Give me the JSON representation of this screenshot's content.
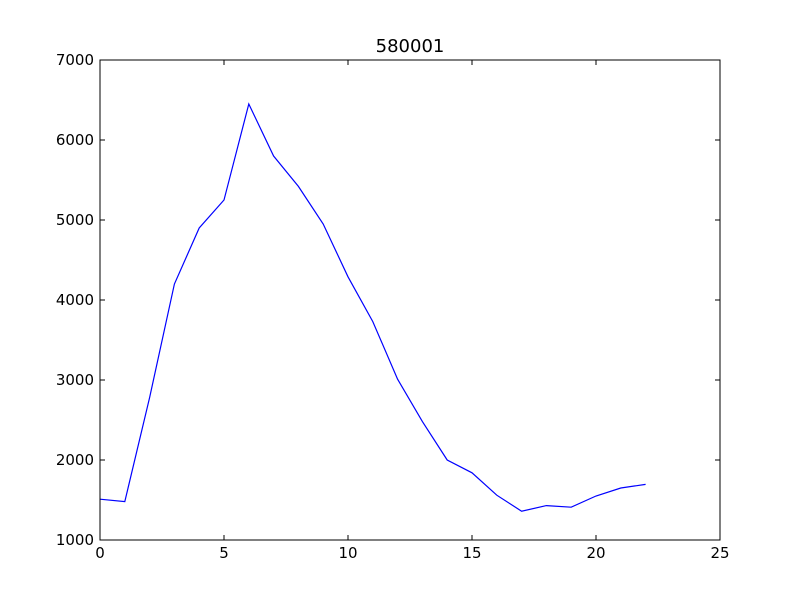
{
  "chart_data": {
    "type": "line",
    "title": "580001",
    "xlabel": "",
    "ylabel": "",
    "xlim": [
      0,
      25
    ],
    "ylim": [
      1000,
      7000
    ],
    "xticks": [
      0,
      5,
      10,
      15,
      20,
      25
    ],
    "yticks": [
      1000,
      2000,
      3000,
      4000,
      5000,
      6000,
      7000
    ],
    "grid": false,
    "series": [
      {
        "color": "#0000ff",
        "x": [
          0,
          1,
          2,
          3,
          4,
          5,
          6,
          7,
          8,
          9,
          10,
          11,
          12,
          13,
          14,
          15,
          16,
          17,
          18,
          19,
          20,
          21,
          22
        ],
        "y": [
          1510,
          1480,
          2780,
          4200,
          4900,
          5250,
          6450,
          5800,
          5420,
          4950,
          4290,
          3730,
          3010,
          2480,
          2000,
          1840,
          1560,
          1360,
          1430,
          1410,
          1550,
          1650,
          1695
        ]
      }
    ]
  }
}
